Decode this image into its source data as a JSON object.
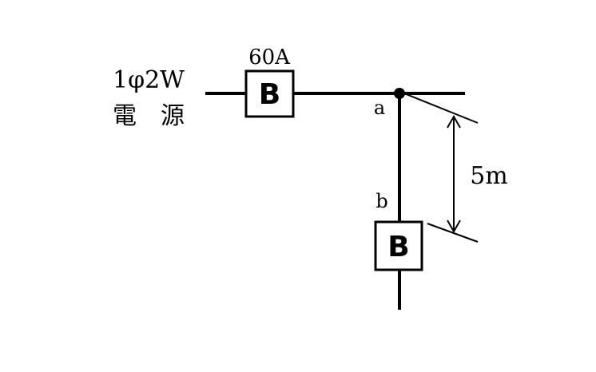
{
  "source": {
    "line1": "1φ2W",
    "line2": "電　源"
  },
  "main_breaker": {
    "rating": "60A",
    "symbol": "B"
  },
  "branch_breaker": {
    "symbol": "B"
  },
  "points": {
    "a": "a",
    "b": "b"
  },
  "distance": {
    "label": "5m"
  }
}
